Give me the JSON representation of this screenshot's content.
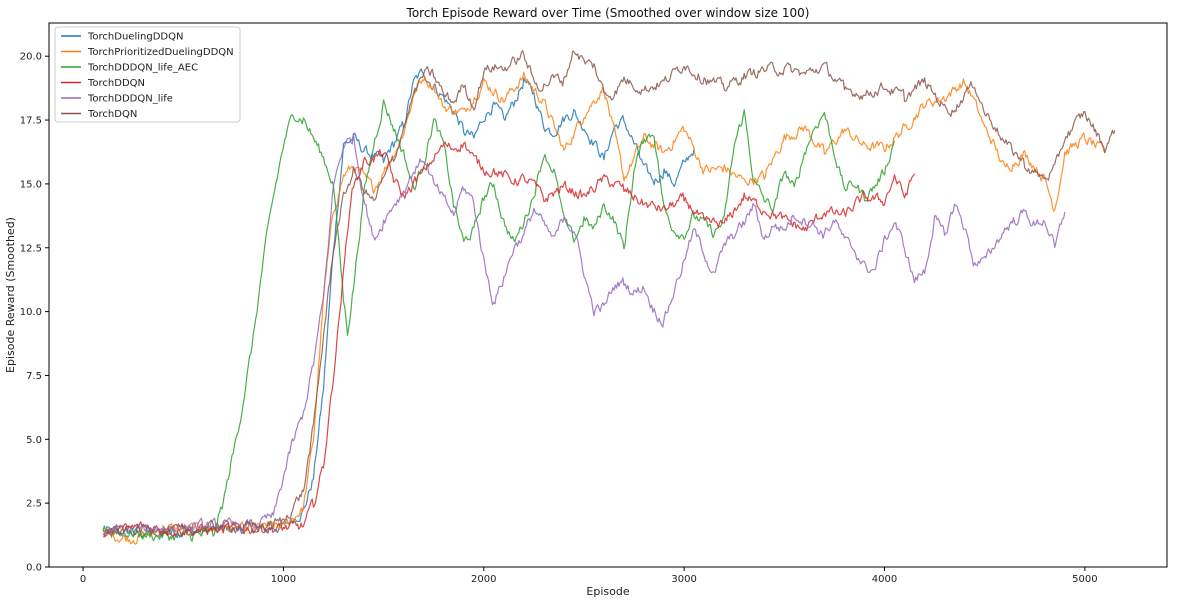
{
  "chart_data": {
    "type": "line",
    "title": "Torch Episode Reward over Time (Smoothed over window size 100)",
    "xlabel": "Episode",
    "ylabel": "Episode Reward (Smoothed)",
    "xlim": [
      -170,
      5410
    ],
    "ylim": [
      0,
      21.3
    ],
    "xticks": [
      0,
      1000,
      2000,
      3000,
      4000,
      5000
    ],
    "yticks": [
      0.0,
      2.5,
      5.0,
      7.5,
      10.0,
      12.5,
      15.0,
      17.5,
      20.0
    ],
    "xtick_labels": [
      "0",
      "1000",
      "2000",
      "3000",
      "4000",
      "5000"
    ],
    "ytick_labels": [
      "0.0",
      "2.5",
      "5.0",
      "7.5",
      "10.0",
      "12.5",
      "15.0",
      "17.5",
      "20.0"
    ],
    "grid": false,
    "legend_position": "top-left",
    "series": [
      {
        "name": "TorchDuelingDDQN",
        "color": "#1f77b4",
        "x": [
          100,
          300,
          500,
          700,
          900,
          1000,
          1100,
          1150,
          1200,
          1250,
          1300,
          1350,
          1400,
          1450,
          1500,
          1550,
          1600,
          1650,
          1700,
          1750,
          1800,
          1850,
          1900,
          1950,
          2000,
          2050,
          2100,
          2150,
          2200,
          2250,
          2300,
          2350,
          2400,
          2450,
          2500,
          2550,
          2600,
          2650,
          2700,
          2750,
          2800,
          2850,
          2900,
          2950,
          3000,
          3050
        ],
        "y": [
          1.4,
          1.3,
          1.4,
          1.5,
          1.5,
          1.6,
          2.2,
          3.5,
          7.0,
          12.5,
          16.5,
          16.8,
          16.3,
          16.1,
          15.9,
          16.6,
          17.3,
          19.0,
          19.4,
          18.8,
          18.4,
          17.8,
          17.1,
          16.8,
          17.6,
          18.1,
          17.5,
          18.2,
          19.0,
          18.5,
          17.3,
          17.0,
          17.6,
          17.8,
          17.2,
          16.6,
          16.0,
          17.2,
          17.5,
          16.6,
          15.6,
          15.1,
          15.5,
          15.0,
          15.8,
          16.4
        ]
      },
      {
        "name": "TorchPrioritizedDuelingDDQN",
        "color": "#ff7f0e",
        "x": [
          100,
          250,
          400,
          600,
          800,
          1000,
          1100,
          1150,
          1200,
          1250,
          1300,
          1350,
          1400,
          1450,
          1500,
          1550,
          1600,
          1650,
          1700,
          1750,
          1800,
          1900,
          2000,
          2100,
          2200,
          2300,
          2400,
          2500,
          2600,
          2700,
          2800,
          2900,
          3000,
          3100,
          3200,
          3300,
          3400,
          3500,
          3600,
          3700,
          3800,
          3900,
          4000,
          4100,
          4200,
          4300,
          4400,
          4450,
          4500,
          4550,
          4600,
          4700,
          4800,
          4850,
          4900,
          5000,
          5100
        ],
        "y": [
          1.3,
          1.1,
          1.5,
          1.5,
          1.5,
          1.6,
          2.3,
          5.0,
          10.5,
          14.0,
          15.3,
          15.7,
          15.3,
          14.8,
          15.5,
          16.2,
          17.0,
          18.5,
          19.2,
          18.8,
          18.0,
          17.8,
          19.0,
          18.3,
          19.2,
          18.2,
          16.3,
          17.7,
          18.8,
          15.2,
          16.8,
          16.2,
          17.2,
          15.5,
          15.6,
          15.1,
          15.3,
          16.8,
          17.2,
          16.2,
          17.1,
          16.5,
          16.4,
          17.2,
          18.1,
          18.4,
          19.0,
          18.2,
          17.2,
          16.5,
          15.6,
          16.2,
          15.2,
          14.0,
          16.2,
          16.8,
          16.2
        ]
      },
      {
        "name": "TorchDDDQN_life_AEC",
        "color": "#2ca02c",
        "x": [
          100,
          250,
          400,
          550,
          650,
          700,
          750,
          800,
          850,
          900,
          950,
          1000,
          1050,
          1100,
          1150,
          1200,
          1250,
          1300,
          1320,
          1350,
          1400,
          1450,
          1500,
          1550,
          1600,
          1650,
          1700,
          1750,
          1800,
          1850,
          1900,
          1950,
          2000,
          2050,
          2100,
          2150,
          2200,
          2250,
          2300,
          2350,
          2400,
          2450,
          2500,
          2550,
          2600,
          2650,
          2700,
          2750,
          2800,
          2850,
          2900,
          2950,
          3000,
          3050,
          3100,
          3150,
          3200,
          3250,
          3300,
          3350,
          3400,
          3450,
          3500,
          3550,
          3600,
          3650,
          3700,
          3750,
          3800,
          3850,
          3900,
          3950,
          4000,
          4050
        ],
        "y": [
          1.5,
          1.3,
          1.2,
          1.2,
          1.3,
          2.5,
          4.5,
          6.5,
          9.0,
          12.0,
          14.5,
          16.5,
          17.8,
          17.5,
          16.8,
          16.0,
          15.0,
          10.5,
          9.2,
          11.0,
          14.5,
          16.5,
          18.2,
          17.2,
          16.2,
          14.8,
          15.8,
          17.5,
          16.5,
          14.2,
          12.7,
          13.2,
          14.5,
          15.0,
          13.5,
          12.7,
          13.5,
          14.6,
          16.2,
          15.5,
          13.6,
          12.8,
          13.6,
          13.2,
          14.2,
          13.6,
          12.5,
          15.5,
          16.8,
          17.0,
          14.0,
          13.2,
          13.0,
          13.8,
          13.5,
          13.0,
          13.6,
          16.5,
          17.8,
          15.0,
          14.4,
          14.0,
          15.5,
          14.8,
          16.2,
          17.2,
          17.8,
          16.2,
          14.8,
          15.0,
          14.5,
          14.9,
          15.5,
          16.7
        ]
      },
      {
        "name": "TorchDDQN",
        "color": "#d62728",
        "x": [
          100,
          300,
          500,
          700,
          900,
          1000,
          1100,
          1150,
          1200,
          1250,
          1300,
          1330,
          1350,
          1400,
          1450,
          1500,
          1550,
          1600,
          1650,
          1700,
          1750,
          1800,
          1850,
          1900,
          1950,
          2000,
          2050,
          2100,
          2150,
          2200,
          2250,
          2300,
          2400,
          2500,
          2600,
          2700,
          2800,
          2900,
          3000,
          3100,
          3200,
          3300,
          3400,
          3500,
          3600,
          3700,
          3800,
          3900,
          4000,
          4050,
          4100,
          4150
        ],
        "y": [
          1.3,
          1.6,
          1.4,
          1.5,
          1.5,
          1.5,
          1.6,
          2.5,
          4.0,
          7.5,
          11.5,
          14.0,
          15.0,
          15.8,
          16.0,
          16.2,
          15.2,
          14.5,
          15.0,
          15.5,
          16.0,
          16.5,
          16.4,
          16.6,
          16.0,
          15.6,
          15.5,
          15.3,
          15.1,
          15.2,
          15.0,
          14.4,
          14.9,
          14.5,
          15.2,
          14.8,
          14.2,
          14.0,
          14.4,
          13.5,
          13.4,
          14.5,
          14.0,
          13.6,
          13.2,
          13.9,
          13.8,
          14.5,
          14.3,
          15.3,
          14.5,
          15.4
        ]
      },
      {
        "name": "TorchDDDQN_life",
        "color": "#9467bd",
        "x": [
          100,
          300,
          500,
          700,
          850,
          950,
          1000,
          1050,
          1100,
          1150,
          1200,
          1250,
          1300,
          1350,
          1400,
          1450,
          1500,
          1550,
          1600,
          1650,
          1700,
          1750,
          1800,
          1850,
          1900,
          1950,
          2000,
          2050,
          2100,
          2150,
          2200,
          2250,
          2300,
          2350,
          2400,
          2450,
          2500,
          2550,
          2600,
          2650,
          2700,
          2750,
          2800,
          2850,
          2900,
          2950,
          3000,
          3050,
          3100,
          3150,
          3200,
          3250,
          3300,
          3350,
          3400,
          3450,
          3500,
          3550,
          3600,
          3650,
          3700,
          3750,
          3800,
          3850,
          3900,
          3950,
          4000,
          4050,
          4100,
          4150,
          4200,
          4250,
          4300,
          4350,
          4400,
          4450,
          4500,
          4550,
          4600,
          4650,
          4700,
          4750,
          4800,
          4850,
          4900
        ],
        "y": [
          1.4,
          1.5,
          1.6,
          1.6,
          1.6,
          2.0,
          3.5,
          5.0,
          6.0,
          8.0,
          10.5,
          15.0,
          16.5,
          16.8,
          14.5,
          12.8,
          13.5,
          14.2,
          14.7,
          15.5,
          16.0,
          15.0,
          14.4,
          13.8,
          14.9,
          14.3,
          12.0,
          10.3,
          11.3,
          12.5,
          13.0,
          14.0,
          13.4,
          12.8,
          13.7,
          13.2,
          11.5,
          10.0,
          10.2,
          11.0,
          11.2,
          10.7,
          11.0,
          10.0,
          9.6,
          10.8,
          12.0,
          13.2,
          12.3,
          11.4,
          12.6,
          13.0,
          13.5,
          14.2,
          12.8,
          13.4,
          13.2,
          13.8,
          13.6,
          13.4,
          13.0,
          13.6,
          12.8,
          12.4,
          11.8,
          11.6,
          12.8,
          13.5,
          12.5,
          11.2,
          11.6,
          13.6,
          13.0,
          14.2,
          13.3,
          11.8,
          12.0,
          12.6,
          13.2,
          13.6,
          13.9,
          13.4,
          13.6,
          12.5,
          13.9
        ]
      },
      {
        "name": "TorchDQN",
        "color": "#8c564b",
        "x": [
          100,
          300,
          500,
          700,
          900,
          1000,
          1100,
          1150,
          1200,
          1250,
          1300,
          1350,
          1400,
          1450,
          1500,
          1550,
          1600,
          1650,
          1700,
          1750,
          1800,
          1850,
          1900,
          1950,
          2000,
          2050,
          2100,
          2150,
          2200,
          2250,
          2300,
          2350,
          2400,
          2450,
          2500,
          2550,
          2600,
          2650,
          2700,
          2800,
          2900,
          3000,
          3100,
          3200,
          3300,
          3400,
          3500,
          3600,
          3700,
          3800,
          3900,
          4000,
          4100,
          4200,
          4300,
          4350,
          4400,
          4450,
          4500,
          4550,
          4600,
          4650,
          4700,
          4750,
          4800,
          4850,
          4900,
          5000,
          5100,
          5150
        ],
        "y": [
          1.3,
          1.5,
          1.4,
          1.6,
          1.6,
          1.8,
          3.0,
          5.5,
          9.0,
          12.5,
          14.5,
          15.5,
          14.8,
          14.3,
          15.2,
          16.0,
          17.2,
          18.5,
          19.3,
          19.3,
          18.5,
          18.2,
          18.9,
          18.0,
          19.4,
          19.6,
          19.5,
          19.8,
          20.1,
          19.0,
          18.8,
          19.2,
          19.0,
          20.3,
          19.8,
          19.6,
          18.6,
          18.5,
          19.1,
          18.7,
          19.0,
          19.7,
          19.1,
          18.8,
          19.2,
          19.5,
          19.5,
          19.3,
          19.6,
          18.7,
          18.5,
          18.8,
          18.4,
          19.0,
          18.0,
          17.9,
          18.5,
          18.9,
          17.8,
          17.3,
          16.6,
          16.2,
          15.8,
          15.4,
          15.2,
          15.6,
          16.8,
          17.8,
          16.4,
          17.1
        ]
      }
    ]
  }
}
